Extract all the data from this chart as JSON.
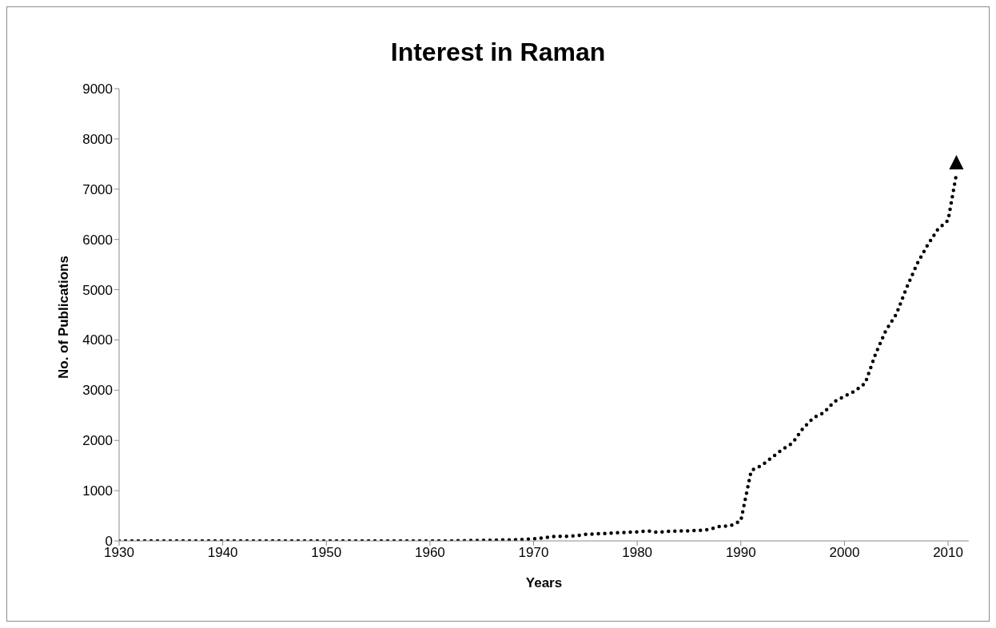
{
  "chart_data": {
    "type": "line",
    "title": "Interest in Raman",
    "xlabel": "Years",
    "ylabel": "No. of Publications",
    "x": [
      1930,
      1935,
      1940,
      1945,
      1950,
      1955,
      1960,
      1962,
      1965,
      1966,
      1967,
      1968,
      1969,
      1970,
      1971,
      1972,
      1973,
      1974,
      1975,
      1976,
      1977,
      1978,
      1979,
      1980,
      1981,
      1982,
      1983,
      1984,
      1985,
      1986,
      1987,
      1988,
      1989,
      1990,
      1991,
      1992,
      1993,
      1994,
      1995,
      1996,
      1997,
      1998,
      1999,
      2000,
      2001,
      2002,
      2003,
      2004,
      2005,
      2006,
      2007,
      2008,
      2009,
      2010,
      2010.8
    ],
    "series": [
      {
        "color": "#000000",
        "values": [
          0,
          0,
          0,
          0,
          0,
          0,
          0,
          0,
          10,
          10,
          20,
          20,
          30,
          40,
          60,
          90,
          90,
          100,
          130,
          140,
          150,
          160,
          170,
          180,
          200,
          170,
          190,
          200,
          200,
          210,
          230,
          290,
          300,
          400,
          1400,
          1500,
          1660,
          1820,
          1950,
          2240,
          2450,
          2550,
          2770,
          2880,
          2980,
          3140,
          3720,
          4190,
          4510,
          5040,
          5510,
          5880,
          6200,
          6380,
          7300
        ]
      }
    ],
    "xlim": [
      1930,
      2012
    ],
    "xticks": [
      1930,
      1940,
      1950,
      1960,
      1970,
      1980,
      1990,
      2000,
      2010
    ],
    "ylim": [
      0,
      9000
    ],
    "yticks": [
      0,
      1000,
      2000,
      3000,
      4000,
      5000,
      6000,
      7000,
      8000,
      9000
    ],
    "marker": "none",
    "line_style": "dotted"
  }
}
